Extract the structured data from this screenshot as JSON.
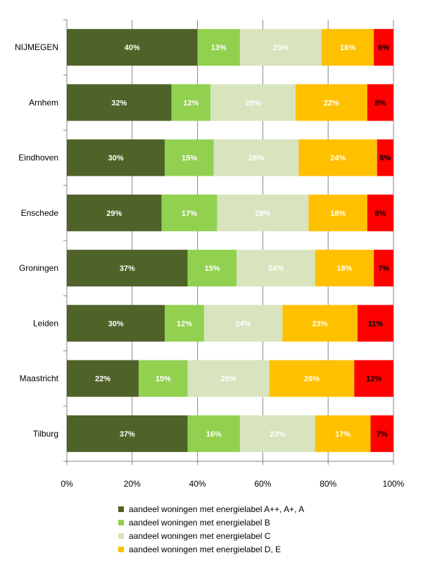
{
  "chart_data": {
    "type": "bar",
    "orientation": "horizontal",
    "stacked": "percent",
    "categories": [
      "NIJMEGEN",
      "Arnhem",
      "Eindhoven",
      "Enschede",
      "Groningen",
      "Leiden",
      "Maastricht",
      "Tilburg"
    ],
    "series": [
      {
        "name": "aandeel woningen met energielabel A++, A+, A",
        "color": "#4f6228",
        "label_color": "#ffffff",
        "values": [
          40,
          32,
          30,
          29,
          37,
          30,
          22,
          37
        ]
      },
      {
        "name": "aandeel woningen met energielabel B",
        "color": "#92d050",
        "label_color": "#ffffff",
        "values": [
          13,
          12,
          15,
          17,
          15,
          12,
          15,
          16
        ]
      },
      {
        "name": "aandeel woningen met energielabel C",
        "color": "#d7e4bd",
        "label_color": "#ffffff",
        "values": [
          25,
          26,
          26,
          28,
          24,
          24,
          25,
          23
        ]
      },
      {
        "name": "aandeel woningen met energielabel D, E",
        "color": "#ffc000",
        "label_color": "#ffffff",
        "values": [
          16,
          22,
          24,
          18,
          18,
          23,
          26,
          17
        ]
      },
      {
        "name": "",
        "color": "#ff0000",
        "label_color": "#000000",
        "values": [
          6,
          8,
          5,
          8,
          7,
          11,
          12,
          7
        ]
      }
    ],
    "xlim": [
      0,
      100
    ],
    "x_ticks": [
      "0%",
      "20%",
      "40%",
      "60%",
      "80%",
      "100%"
    ],
    "grid": "vertical",
    "legend_position": "bottom"
  }
}
